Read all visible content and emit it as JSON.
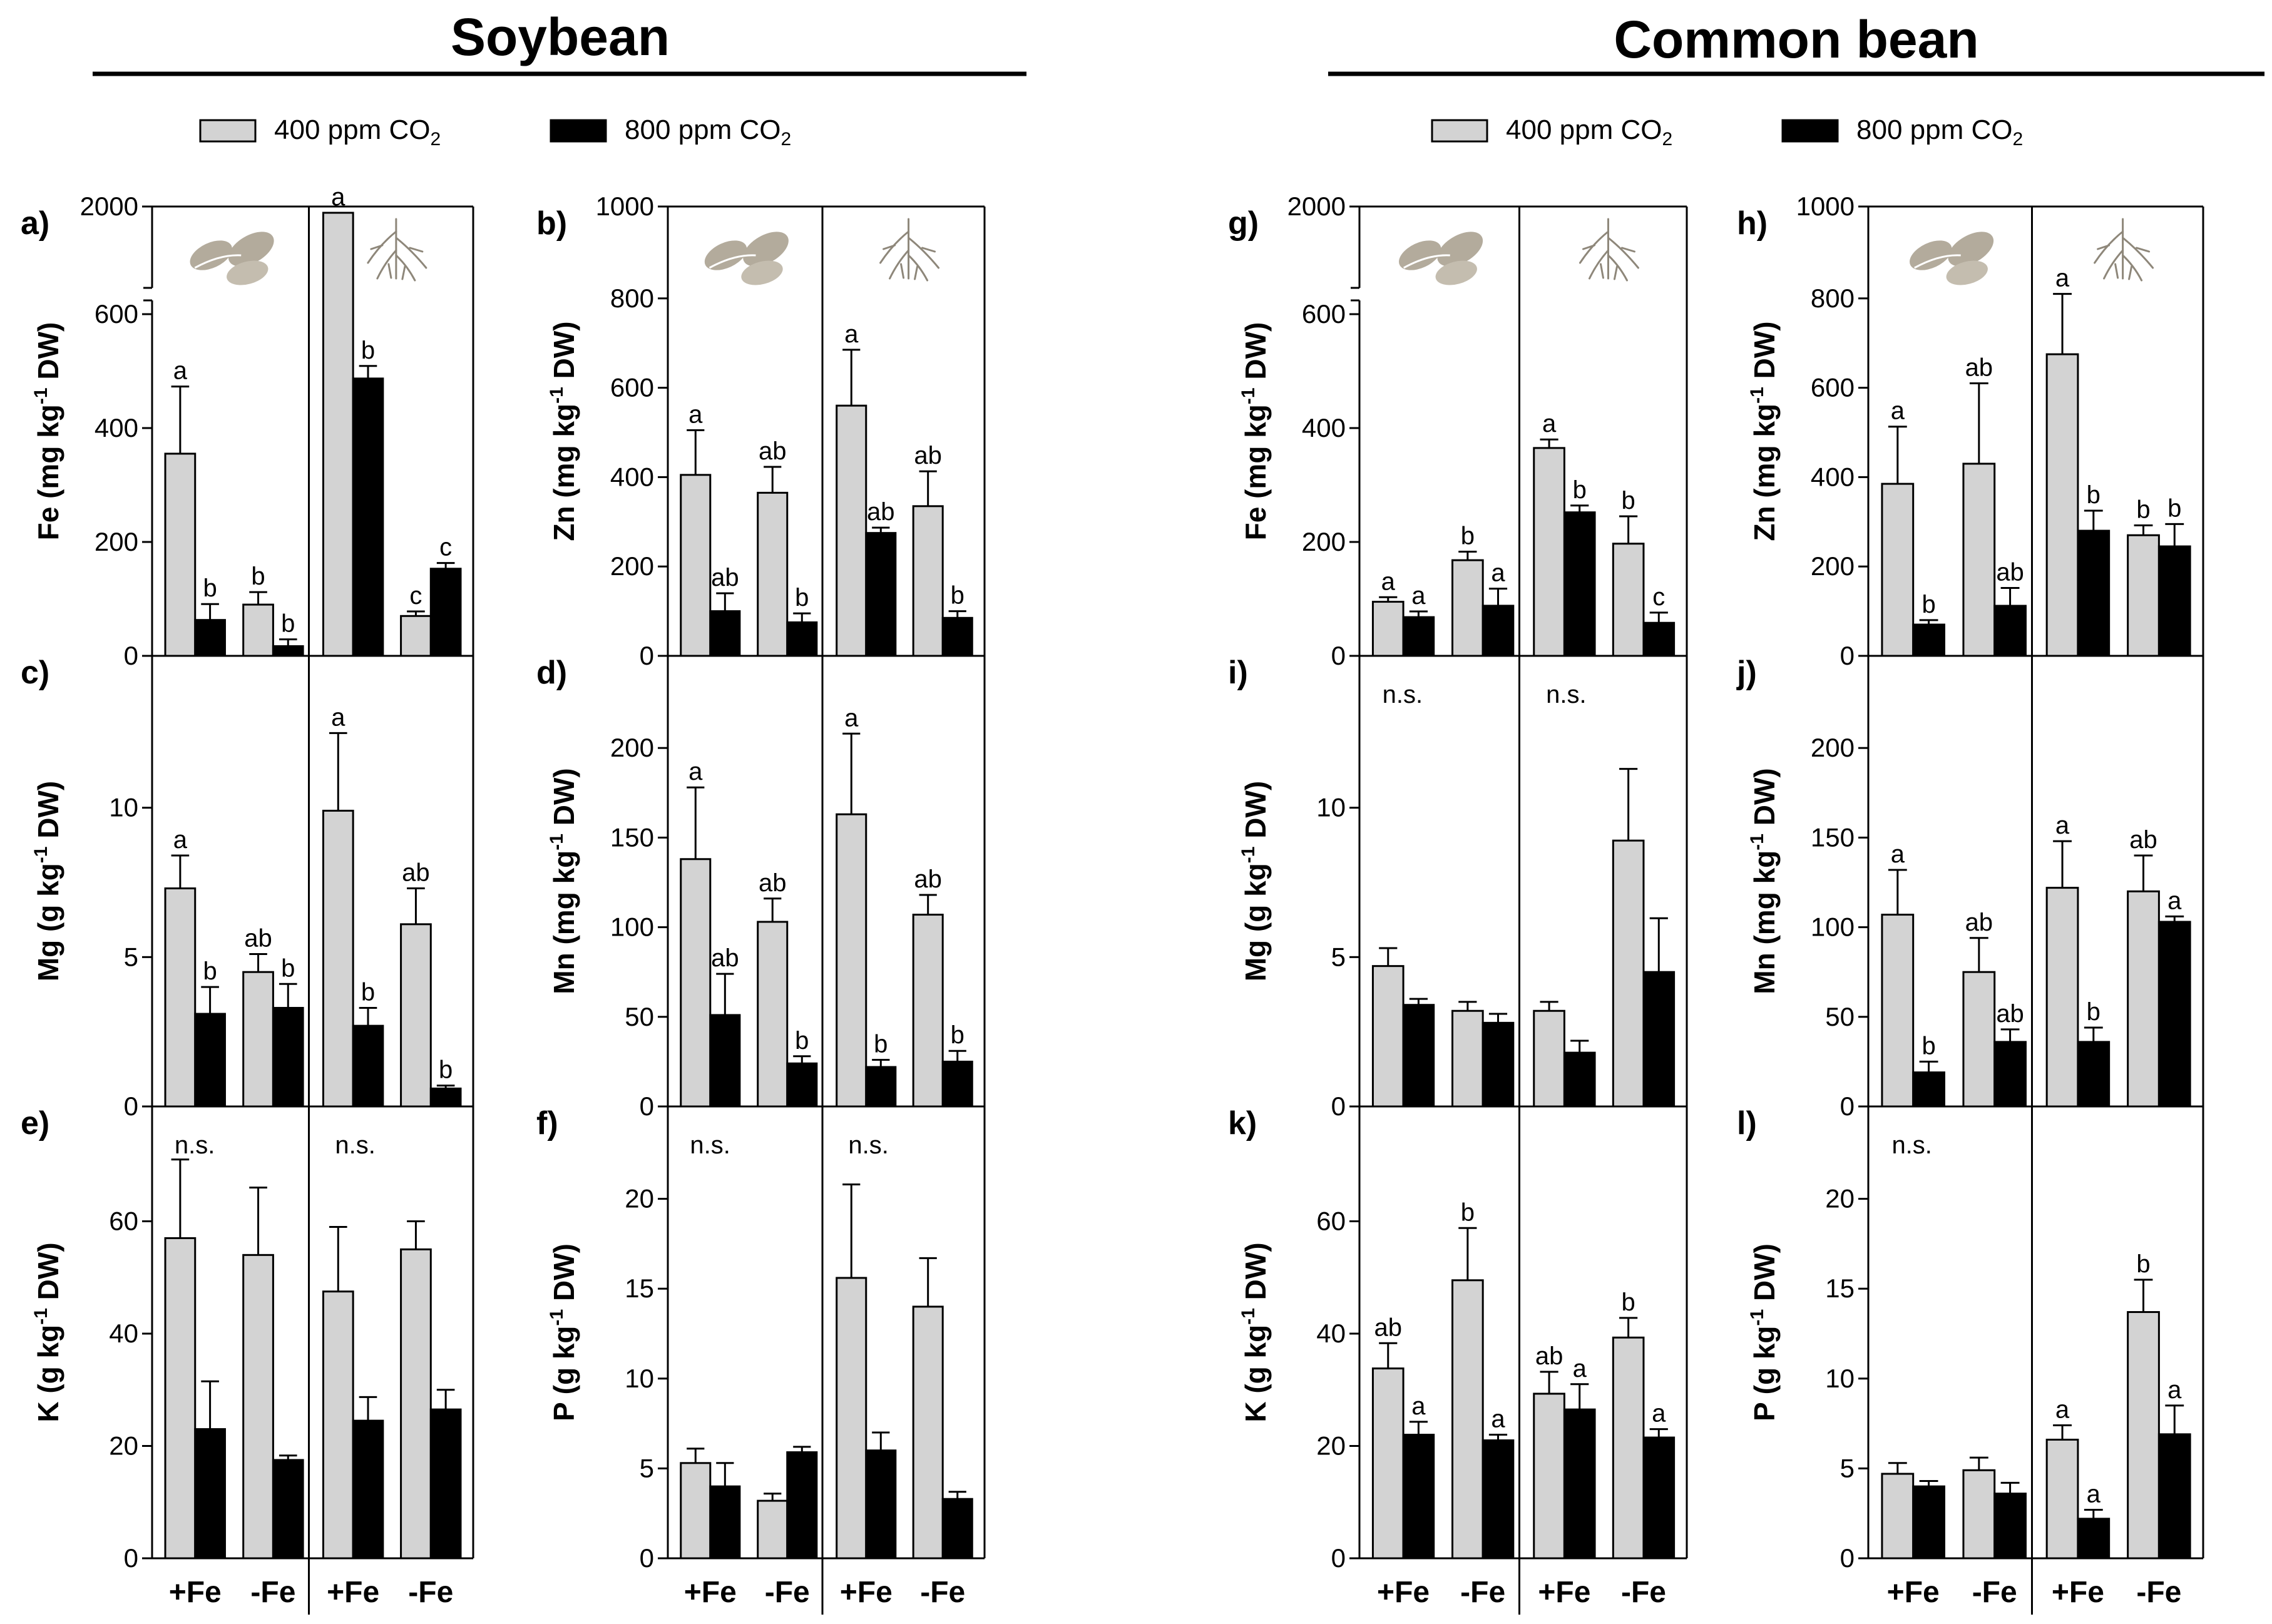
{
  "figure": {
    "species": [
      {
        "title": "Soybean"
      },
      {
        "title": "Common bean"
      }
    ],
    "legend": [
      {
        "label": "400 ppm CO₂",
        "color": "#d3d3d3"
      },
      {
        "label": "800 ppm CO₂",
        "color": "#000000"
      }
    ],
    "x_categories": [
      "+Fe",
      "-Fe",
      "+Fe",
      "-Fe"
    ],
    "section_icons": [
      "leaf-icon",
      "root-icon"
    ]
  },
  "chart_data": [
    {
      "id": "a",
      "type": "bar",
      "species": "Soybean",
      "ylabel": "Fe (mg kg-1 DW)",
      "ylabel_main": "Fe (mg kg",
      "ylabel_sup": "-1",
      "ylabel_tail": " DW)",
      "ylim": [
        0,
        2000
      ],
      "axis_break": true,
      "yticks": [
        "0",
        "200",
        "400",
        "600",
        "2000"
      ],
      "categories": [
        "+Fe",
        "-Fe",
        "+Fe",
        "-Fe"
      ],
      "series": [
        {
          "name": "400 ppm CO2",
          "values": [
            355,
            90,
            2000,
            70
          ],
          "errors": [
            118,
            22,
            55,
            8
          ],
          "letters": [
            "a",
            "b",
            "a",
            "c"
          ]
        },
        {
          "name": "800 ppm CO2",
          "values": [
            63,
            17,
            487,
            153
          ],
          "errors": [
            28,
            12,
            22,
            10
          ],
          "letters": [
            "b",
            "b",
            "b",
            "c"
          ]
        }
      ]
    },
    {
      "id": "b",
      "type": "bar",
      "species": "Soybean",
      "ylabel": "Zn (mg kg-1 DW)",
      "ylabel_main": "Zn (mg kg",
      "ylabel_sup": "-1",
      "ylabel_tail": " DW)",
      "ylim": [
        0,
        1000
      ],
      "yticks": [
        "0",
        "200",
        "400",
        "600",
        "800",
        "1000"
      ],
      "categories": [
        "+Fe",
        "-Fe",
        "+Fe",
        "-Fe"
      ],
      "series": [
        {
          "name": "400 ppm CO2",
          "values": [
            405,
            365,
            560,
            335
          ],
          "errors": [
            100,
            58,
            125,
            78
          ],
          "letters": [
            "a",
            "ab",
            "a",
            "ab"
          ]
        },
        {
          "name": "800 ppm CO2",
          "values": [
            100,
            75,
            275,
            85
          ],
          "errors": [
            40,
            20,
            12,
            15
          ],
          "letters": [
            "ab",
            "b",
            "ab",
            "b"
          ]
        }
      ]
    },
    {
      "id": "c",
      "type": "bar",
      "species": "Soybean",
      "ylabel": "Mg (g kg-1 DW)",
      "ylabel_main": "Mg (g kg",
      "ylabel_sup": "-1",
      "ylabel_tail": " DW)",
      "ylim": [
        0,
        15
      ],
      "yticks": [
        "0",
        "5",
        "10"
      ],
      "categories": [
        "+Fe",
        "-Fe",
        "+Fe",
        "-Fe"
      ],
      "series": [
        {
          "name": "400 ppm CO2",
          "values": [
            7.3,
            4.5,
            9.9,
            6.1
          ],
          "errors": [
            1.1,
            0.6,
            2.6,
            1.2
          ],
          "letters": [
            "a",
            "ab",
            "a",
            "ab"
          ]
        },
        {
          "name": "800 ppm CO2",
          "values": [
            3.1,
            3.3,
            2.7,
            0.6
          ],
          "errors": [
            0.9,
            0.8,
            0.6,
            0.1
          ],
          "letters": [
            "b",
            "b",
            "b",
            "b"
          ]
        }
      ]
    },
    {
      "id": "d",
      "type": "bar",
      "species": "Soybean",
      "ylabel": "Mn (mg kg-1 DW)",
      "ylabel_main": "Mn (mg kg",
      "ylabel_sup": "-1",
      "ylabel_tail": " DW)",
      "ylim": [
        0,
        250
      ],
      "yticks": [
        "0",
        "50",
        "100",
        "150",
        "200"
      ],
      "categories": [
        "+Fe",
        "-Fe",
        "+Fe",
        "-Fe"
      ],
      "series": [
        {
          "name": "400 ppm CO2",
          "values": [
            138,
            103,
            163,
            107
          ],
          "errors": [
            40,
            13,
            45,
            11
          ],
          "letters": [
            "a",
            "ab",
            "a",
            "ab"
          ]
        },
        {
          "name": "800 ppm CO2",
          "values": [
            51,
            24,
            22,
            25
          ],
          "errors": [
            23,
            4,
            4,
            6
          ],
          "letters": [
            "ab",
            "b",
            "b",
            "b"
          ]
        }
      ]
    },
    {
      "id": "e",
      "type": "bar",
      "species": "Soybean",
      "ylabel": "K (g kg-1 DW)",
      "ylabel_main": "K (g kg",
      "ylabel_sup": "-1",
      "ylabel_tail": " DW)",
      "ylim": [
        0,
        80
      ],
      "yticks": [
        "0",
        "20",
        "40",
        "60"
      ],
      "ns": [
        "n.s.",
        "n.s."
      ],
      "categories": [
        "+Fe",
        "-Fe",
        "+Fe",
        "-Fe"
      ],
      "series": [
        {
          "name": "400 ppm CO2",
          "values": [
            57,
            54,
            47.5,
            55
          ],
          "errors": [
            14,
            12,
            11.5,
            5
          ]
        },
        {
          "name": "800 ppm CO2",
          "values": [
            23,
            17.5,
            24.5,
            26.5
          ],
          "errors": [
            8.5,
            0.8,
            4.2,
            3.5
          ]
        }
      ]
    },
    {
      "id": "f",
      "type": "bar",
      "species": "Soybean",
      "ylabel": "P (g kg-1 DW)",
      "ylabel_main": "P (g kg",
      "ylabel_sup": "-1",
      "ylabel_tail": " DW)",
      "ylim": [
        0,
        25
      ],
      "yticks": [
        "0",
        "5",
        "10",
        "15",
        "20"
      ],
      "ns": [
        "n.s.",
        "n.s."
      ],
      "categories": [
        "+Fe",
        "-Fe",
        "+Fe",
        "-Fe"
      ],
      "series": [
        {
          "name": "400 ppm CO2",
          "values": [
            5.3,
            3.2,
            15.6,
            14
          ],
          "errors": [
            0.8,
            0.4,
            5.2,
            2.7
          ]
        },
        {
          "name": "800 ppm CO2",
          "values": [
            4,
            5.9,
            6,
            3.3
          ],
          "errors": [
            1.3,
            0.3,
            1,
            0.4
          ]
        }
      ]
    },
    {
      "id": "g",
      "type": "bar",
      "species": "Common bean",
      "ylabel": "Fe (mg kg-1 DW)",
      "ylabel_main": "Fe (mg kg",
      "ylabel_sup": "-1",
      "ylabel_tail": " DW)",
      "ylim": [
        0,
        2000
      ],
      "axis_break": true,
      "yticks": [
        "0",
        "200",
        "400",
        "600",
        "2000"
      ],
      "categories": [
        "+Fe",
        "-Fe",
        "+Fe",
        "-Fe"
      ],
      "series": [
        {
          "name": "400 ppm CO2",
          "values": [
            95,
            168,
            365,
            197
          ],
          "errors": [
            8,
            15,
            15,
            48
          ],
          "letters": [
            "a",
            "b",
            "a",
            "b"
          ]
        },
        {
          "name": "800 ppm CO2",
          "values": [
            68,
            88,
            252,
            58
          ],
          "errors": [
            10,
            30,
            12,
            18
          ],
          "letters": [
            "a",
            "a",
            "b",
            "c"
          ]
        }
      ]
    },
    {
      "id": "h",
      "type": "bar",
      "species": "Common bean",
      "ylabel": "Zn (mg kg-1 DW)",
      "ylabel_main": "Zn (mg kg",
      "ylabel_sup": "-1",
      "ylabel_tail": " DW)",
      "ylim": [
        0,
        1000
      ],
      "yticks": [
        "0",
        "200",
        "400",
        "600",
        "800",
        "1000"
      ],
      "categories": [
        "+Fe",
        "-Fe",
        "+Fe",
        "-Fe"
      ],
      "series": [
        {
          "name": "400 ppm CO2",
          "values": [
            385,
            430,
            675,
            270
          ],
          "errors": [
            128,
            180,
            135,
            22
          ],
          "letters": [
            "a",
            "ab",
            "a",
            "b"
          ]
        },
        {
          "name": "800 ppm CO2",
          "values": [
            70,
            112,
            280,
            245
          ],
          "errors": [
            10,
            40,
            45,
            50
          ],
          "letters": [
            "b",
            "ab",
            "b",
            "b"
          ]
        }
      ]
    },
    {
      "id": "i",
      "type": "bar",
      "species": "Common bean",
      "ylabel": "Mg (g kg-1 DW)",
      "ylabel_main": "Mg (g kg",
      "ylabel_sup": "-1",
      "ylabel_tail": " DW)",
      "ylim": [
        0,
        15
      ],
      "yticks": [
        "0",
        "5",
        "10"
      ],
      "ns": [
        "n.s.",
        "n.s."
      ],
      "categories": [
        "+Fe",
        "-Fe",
        "+Fe",
        "-Fe"
      ],
      "series": [
        {
          "name": "400 ppm CO2",
          "values": [
            4.7,
            3.2,
            3.2,
            8.9
          ],
          "errors": [
            0.6,
            0.3,
            0.3,
            2.4
          ]
        },
        {
          "name": "800 ppm CO2",
          "values": [
            3.4,
            2.8,
            1.8,
            4.5
          ],
          "errors": [
            0.2,
            0.3,
            0.4,
            1.8
          ]
        }
      ]
    },
    {
      "id": "j",
      "type": "bar",
      "species": "Common bean",
      "ylabel": "Mn (mg kg-1 DW)",
      "ylabel_main": "Mn (mg kg",
      "ylabel_sup": "-1",
      "ylabel_tail": " DW)",
      "ylim": [
        0,
        250
      ],
      "yticks": [
        "0",
        "50",
        "100",
        "150",
        "200"
      ],
      "categories": [
        "+Fe",
        "-Fe",
        "+Fe",
        "-Fe"
      ],
      "series": [
        {
          "name": "400 ppm CO2",
          "values": [
            107,
            75,
            122,
            120
          ],
          "errors": [
            25,
            19,
            26,
            20
          ],
          "letters": [
            "a",
            "ab",
            "a",
            "ab"
          ]
        },
        {
          "name": "800 ppm CO2",
          "values": [
            19,
            36,
            36,
            103
          ],
          "errors": [
            6,
            7,
            8,
            3
          ],
          "letters": [
            "b",
            "ab",
            "b",
            "a"
          ]
        }
      ]
    },
    {
      "id": "k",
      "type": "bar",
      "species": "Common bean",
      "ylabel": "K (g kg-1 DW)",
      "ylabel_main": "K (g kg",
      "ylabel_sup": "-1",
      "ylabel_tail": " DW)",
      "ylim": [
        0,
        80
      ],
      "yticks": [
        "0",
        "20",
        "40",
        "60"
      ],
      "categories": [
        "+Fe",
        "-Fe",
        "+Fe",
        "-Fe"
      ],
      "series": [
        {
          "name": "400 ppm CO2",
          "values": [
            33.8,
            49.5,
            29.3,
            39.3
          ],
          "errors": [
            4.5,
            9.3,
            3.9,
            3.5
          ],
          "letters": [
            "ab",
            "b",
            "ab",
            "b"
          ]
        },
        {
          "name": "800 ppm CO2",
          "values": [
            22,
            21,
            26.5,
            21.5
          ],
          "errors": [
            2.3,
            1,
            4.5,
            1.5
          ],
          "letters": [
            "a",
            "a",
            "a",
            "a"
          ]
        }
      ]
    },
    {
      "id": "l",
      "type": "bar",
      "species": "Common bean",
      "ylabel": "P (g kg-1 DW)",
      "ylabel_main": "P (g kg",
      "ylabel_sup": "-1",
      "ylabel_tail": " DW)",
      "ylim": [
        0,
        25
      ],
      "yticks": [
        "0",
        "5",
        "10",
        "15",
        "20"
      ],
      "ns": [
        "n.s."
      ],
      "categories": [
        "+Fe",
        "-Fe",
        "+Fe",
        "-Fe"
      ],
      "series": [
        {
          "name": "400 ppm CO2",
          "values": [
            4.7,
            4.9,
            6.6,
            13.7
          ],
          "errors": [
            0.6,
            0.7,
            0.8,
            1.8
          ],
          "letters": [
            null,
            null,
            "a",
            "b"
          ]
        },
        {
          "name": "800 ppm CO2",
          "values": [
            4,
            3.6,
            2.2,
            6.9
          ],
          "errors": [
            0.3,
            0.6,
            0.5,
            1.6
          ],
          "letters": [
            null,
            null,
            "a",
            "a"
          ]
        }
      ]
    }
  ]
}
